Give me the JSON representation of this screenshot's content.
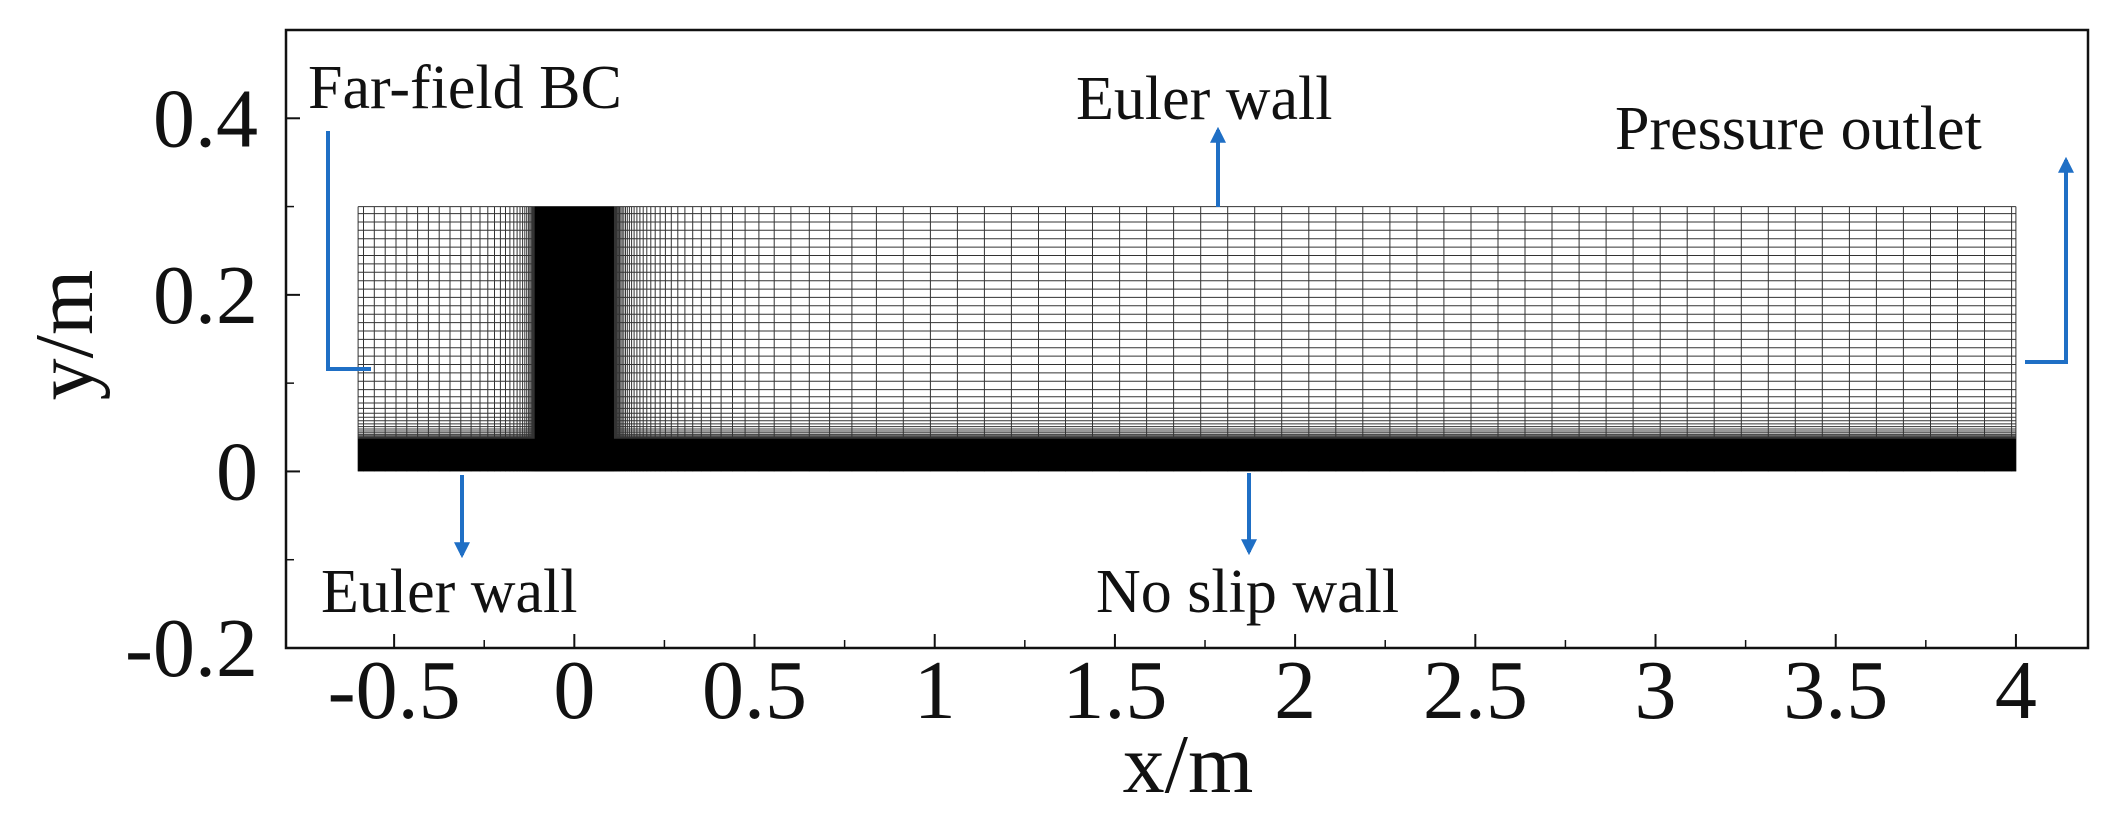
{
  "figure": {
    "xlabel": "x/m",
    "ylabel": "y/m",
    "xlim": [
      -0.8,
      4.2
    ],
    "ylim": [
      -0.2,
      0.5
    ],
    "xticks": [
      -0.5,
      0,
      0.5,
      1,
      1.5,
      2,
      2.5,
      3,
      3.5,
      4
    ],
    "yticks": [
      -0.2,
      0,
      0.2,
      0.4
    ],
    "annotations": {
      "far_field": "Far-field BC",
      "euler_wall_top": "Euler wall",
      "pressure_outlet": "Pressure outlet",
      "euler_wall_bottom": "Euler wall",
      "no_slip_wall": "No slip wall"
    }
  }
}
